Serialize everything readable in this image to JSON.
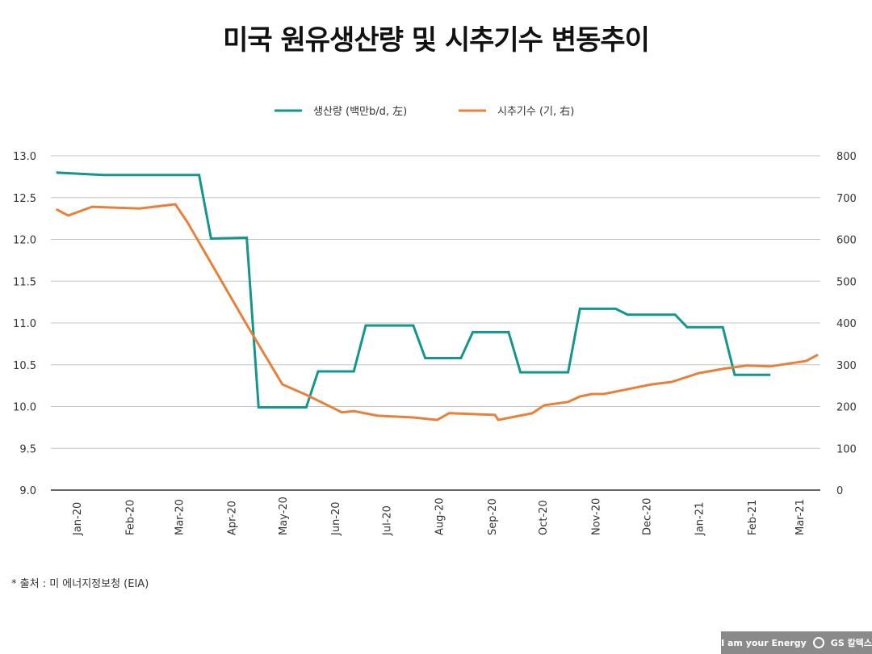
{
  "chart_data": {
    "type": "line",
    "title": "미국 원유생산량 및 시추기수 변동추이",
    "x_tick_labels": [
      "Jan-20",
      "Feb-20",
      "Mar-20",
      "Apr-20",
      "May-20",
      "Jun-20",
      "Jul-20",
      "Aug-20",
      "Sep-20",
      "Oct-20",
      "Nov-20",
      "Dec-20",
      "Jan-21",
      "Feb-21",
      "Mar-21"
    ],
    "x_tick_dates": [
      "2020-01-15",
      "2020-02-15",
      "2020-03-15",
      "2020-04-15",
      "2020-05-15",
      "2020-06-15",
      "2020-07-15",
      "2020-08-15",
      "2020-09-15",
      "2020-10-15",
      "2020-11-15",
      "2020-12-15",
      "2021-01-15",
      "2021-02-15",
      "2021-03-15"
    ],
    "y_left": {
      "range": [
        9.0,
        13.0
      ],
      "ticks": [
        "9.0",
        "9.5",
        "10.0",
        "10.5",
        "11.0",
        "11.5",
        "12.0",
        "12.5",
        "13.0"
      ]
    },
    "y_right": {
      "range": [
        0,
        800
      ],
      "ticks": [
        "0",
        "100",
        "200",
        "300",
        "400",
        "500",
        "600",
        "700",
        "800"
      ]
    },
    "grid": true,
    "legend_position": "top-center",
    "series": [
      {
        "name": "생산량 (백만b/d, 左)",
        "axis": "left",
        "color": "#13968f",
        "points": [
          [
            "2020-01-03",
            12.8
          ],
          [
            "2020-01-31",
            12.77
          ],
          [
            "2020-03-27",
            12.77
          ],
          [
            "2020-04-03",
            12.01
          ],
          [
            "2020-04-24",
            12.02
          ],
          [
            "2020-05-01",
            9.99
          ],
          [
            "2020-05-29",
            9.99
          ],
          [
            "2020-06-05",
            10.42
          ],
          [
            "2020-06-26",
            10.42
          ],
          [
            "2020-07-03",
            10.97
          ],
          [
            "2020-07-31",
            10.97
          ],
          [
            "2020-08-07",
            10.58
          ],
          [
            "2020-08-28",
            10.58
          ],
          [
            "2020-09-04",
            10.89
          ],
          [
            "2020-09-25",
            10.89
          ],
          [
            "2020-10-02",
            10.41
          ],
          [
            "2020-10-30",
            10.41
          ],
          [
            "2020-11-06",
            11.17
          ],
          [
            "2020-11-27",
            11.17
          ],
          [
            "2020-12-04",
            11.1
          ],
          [
            "2021-01-01",
            11.1
          ],
          [
            "2021-01-08",
            10.95
          ],
          [
            "2021-01-29",
            10.95
          ],
          [
            "2021-02-05",
            10.38
          ],
          [
            "2021-02-26",
            10.38
          ]
        ]
      },
      {
        "name": "시추기수 (기, 右)",
        "axis": "right",
        "color": "#e8803a",
        "points": [
          [
            "2020-01-03",
            672
          ],
          [
            "2020-01-10",
            657
          ],
          [
            "2020-01-24",
            678
          ],
          [
            "2020-02-21",
            674
          ],
          [
            "2020-03-13",
            684
          ],
          [
            "2020-03-20",
            642
          ],
          [
            "2020-04-24",
            396
          ],
          [
            "2020-05-15",
            253
          ],
          [
            "2020-05-29",
            228
          ],
          [
            "2020-06-19",
            186
          ],
          [
            "2020-06-26",
            189
          ],
          [
            "2020-07-10",
            178
          ],
          [
            "2020-07-31",
            174
          ],
          [
            "2020-08-14",
            168
          ],
          [
            "2020-08-21",
            184
          ],
          [
            "2020-09-17",
            180
          ],
          [
            "2020-09-19",
            168
          ],
          [
            "2020-10-09",
            184
          ],
          [
            "2020-10-16",
            203
          ],
          [
            "2020-10-30",
            211
          ],
          [
            "2020-11-06",
            224
          ],
          [
            "2020-11-13",
            230
          ],
          [
            "2020-11-20",
            230
          ],
          [
            "2020-12-18",
            253
          ],
          [
            "2020-12-30",
            259
          ],
          [
            "2021-01-15",
            280
          ],
          [
            "2021-01-29",
            290
          ],
          [
            "2021-02-12",
            298
          ],
          [
            "2021-02-26",
            296
          ],
          [
            "2021-03-19",
            309
          ],
          [
            "2021-03-26",
            324
          ]
        ]
      }
    ]
  },
  "footer": {
    "source": "* 출처 : 미 에너지정보청 (EIA)"
  },
  "logo": {
    "slogan": "I am your Energy",
    "brand": "GS 칼텍스"
  }
}
